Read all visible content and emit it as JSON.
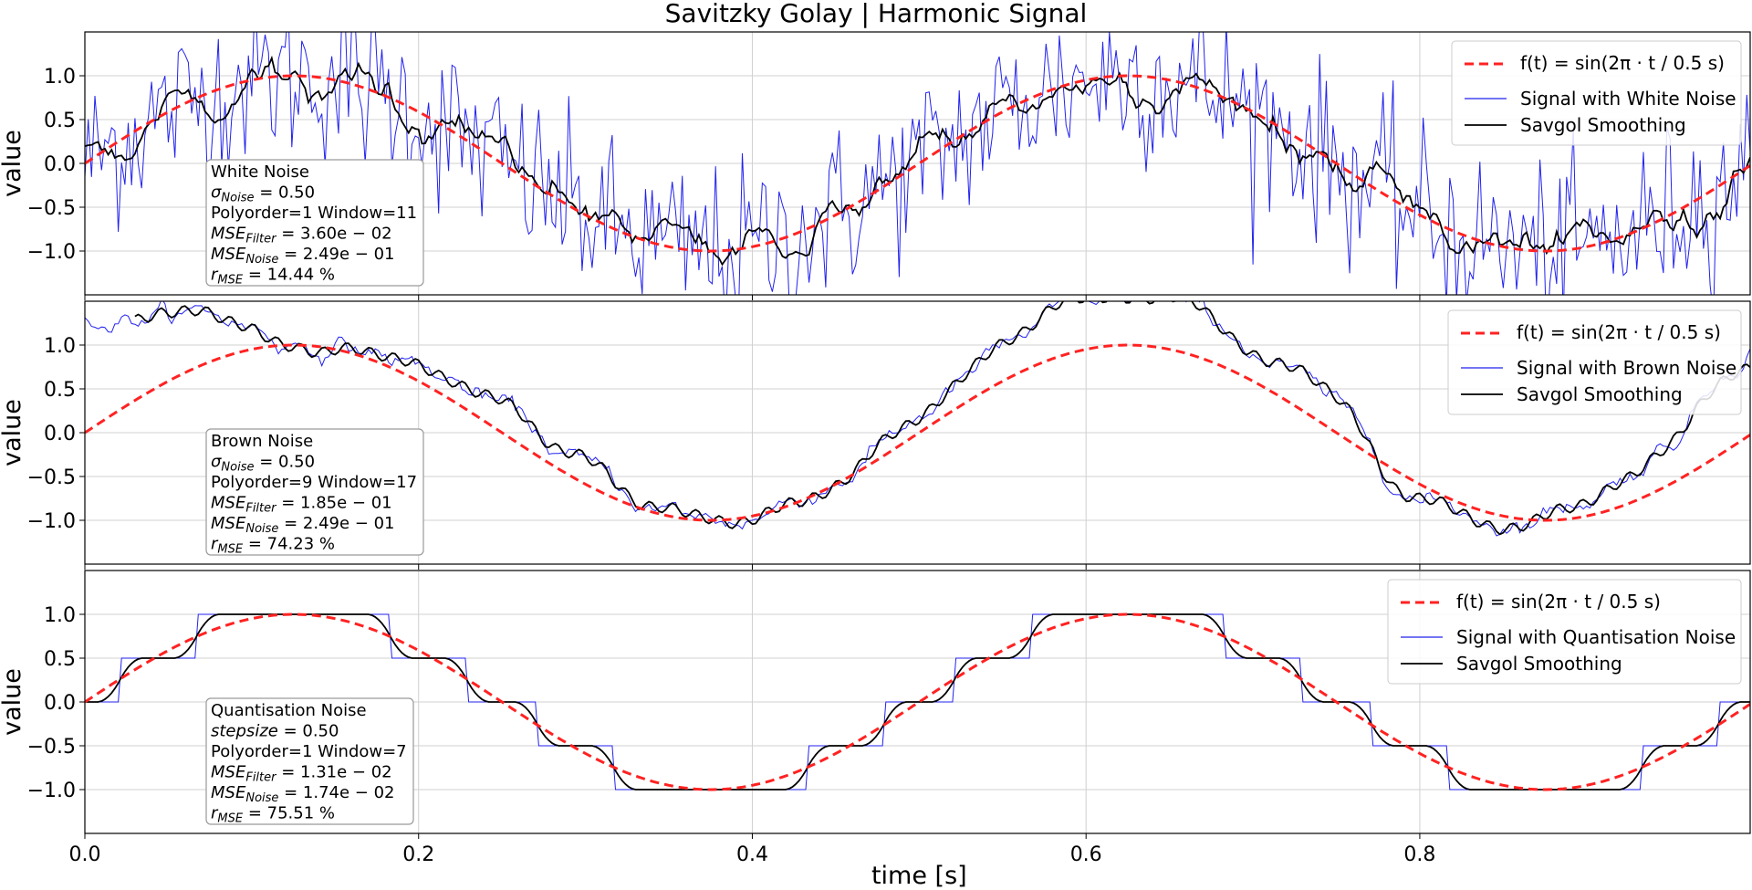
{
  "figure": {
    "title": "Savitzky Golay | Harmonic Signal",
    "xlabel": "time [s]",
    "ylabel": "value",
    "xticks": [
      "0.0",
      "0.2",
      "0.4",
      "0.6",
      "0.8"
    ],
    "yticks": [
      "1.0",
      "0.5",
      "0.0",
      "−0.5",
      "−1.0"
    ]
  },
  "legend_function": "f(t) = sin(2π · t / 0.5 s)",
  "legend_smoothing": "Savgol Smoothing",
  "colors": {
    "reference": "#ff2222",
    "noisy": "#2222ee",
    "smoothed": "#000000",
    "grid": "#d0d0d0",
    "frame": "#000000",
    "box_border": "#9a9a9a"
  },
  "panels": [
    {
      "legend_noise": "Signal with White Noise",
      "info": {
        "name": "White Noise",
        "noise_param_label": "σ",
        "noise_param_sub": "Noise",
        "noise_param_value": " = 0.50",
        "settings": "Polyorder=1 Window=11",
        "mse_filter": " = 3.60e − 02",
        "mse_noise": " = 2.49e − 01",
        "r_mse": " = 14.44 %"
      }
    },
    {
      "legend_noise": "Signal with Brown Noise",
      "info": {
        "name": "Brown Noise",
        "noise_param_label": "σ",
        "noise_param_sub": "Noise",
        "noise_param_value": " = 0.50",
        "settings": "Polyorder=9 Window=17",
        "mse_filter": " = 1.85e − 01",
        "mse_noise": " = 2.49e − 01",
        "r_mse": " = 74.23 %"
      }
    },
    {
      "legend_noise": "Signal with Quantisation Noise",
      "info": {
        "name": "Quantisation Noise",
        "noise_param_label": "stepsize",
        "noise_param_sub": "",
        "noise_param_value": " = 0.50",
        "settings": "Polyorder=1 Window=7",
        "mse_filter": " = 1.31e − 02",
        "mse_noise": " = 1.74e − 02",
        "r_mse": " = 75.51 %"
      }
    }
  ],
  "chart_data": [
    {
      "type": "line",
      "xlim": [
        0,
        0.998
      ],
      "ylim": [
        -1.5,
        1.5
      ],
      "reference": {
        "function": "sin(2*pi*t/0.5)",
        "period_s": 0.5
      },
      "noisy_signal": {
        "noise": "white",
        "sigma": 0.5
      },
      "smoothed": {
        "method": "savgol",
        "polyorder": 1,
        "window": 11
      },
      "legend_position": "upper right",
      "grid": true
    },
    {
      "type": "line",
      "xlim": [
        0,
        0.998
      ],
      "ylim": [
        -1.5,
        1.5
      ],
      "reference": {
        "function": "sin(2*pi*t/0.5)",
        "period_s": 0.5
      },
      "noisy_signal": {
        "noise": "brown",
        "sigma": 0.5
      },
      "smoothed": {
        "method": "savgol",
        "polyorder": 9,
        "window": 17
      },
      "legend_position": "upper right",
      "grid": true
    },
    {
      "type": "line",
      "xlim": [
        0,
        0.998
      ],
      "ylim": [
        -1.5,
        1.5
      ],
      "reference": {
        "function": "sin(2*pi*t/0.5)",
        "period_s": 0.5
      },
      "noisy_signal": {
        "noise": "quantisation",
        "stepsize": 0.5
      },
      "smoothed": {
        "method": "savgol",
        "polyorder": 1,
        "window": 7
      },
      "legend_position": "upper right",
      "grid": true
    }
  ]
}
